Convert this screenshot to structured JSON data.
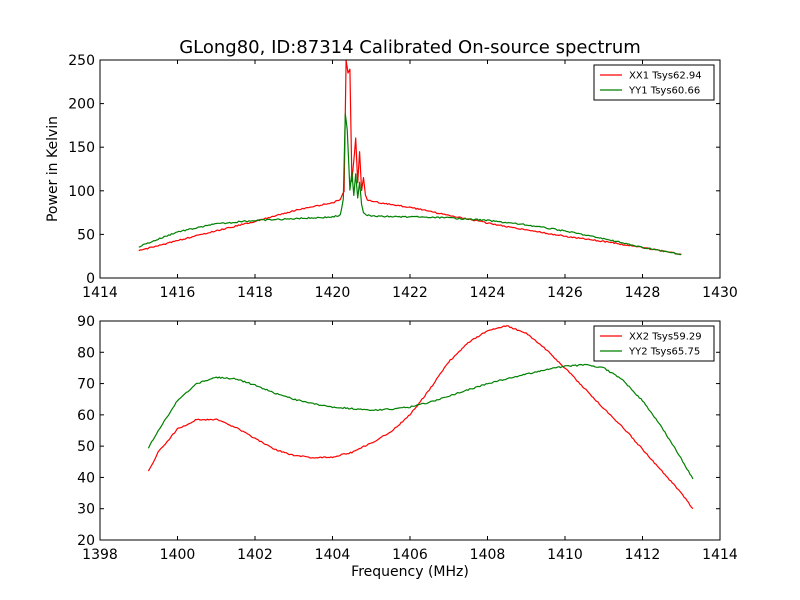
{
  "figure": {
    "title": "GLong80, ID:87314 Calibrated On-source spectrum",
    "shared_xlabel": "Frequency (MHz)"
  },
  "chart_data": [
    {
      "type": "line",
      "title": "GLong80, ID:87314 Calibrated On-source spectrum",
      "xlabel": "",
      "ylabel": "Power in Kelvin",
      "xlim": [
        1414,
        1430
      ],
      "ylim": [
        0,
        250
      ],
      "xticks": [
        1414,
        1416,
        1418,
        1420,
        1422,
        1424,
        1426,
        1428,
        1430
      ],
      "yticks": [
        0,
        50,
        100,
        150,
        200,
        250
      ],
      "legend_position": "top-right",
      "series": [
        {
          "name": "XX1 Tsys62.94",
          "color": "#ff0000",
          "x": [
            1415.0,
            1416.0,
            1417.0,
            1418.0,
            1419.0,
            1419.5,
            1420.0,
            1420.2,
            1420.3,
            1420.35,
            1420.4,
            1420.45,
            1420.5,
            1420.6,
            1420.65,
            1420.7,
            1420.75,
            1420.8,
            1420.85,
            1420.9,
            1421.0,
            1422.0,
            1423.0,
            1424.0,
            1425.0,
            1426.0,
            1427.0,
            1428.0,
            1429.0
          ],
          "y": [
            31,
            43,
            54,
            65,
            77,
            82,
            86,
            90,
            100,
            250,
            235,
            240,
            110,
            160,
            110,
            145,
            100,
            115,
            95,
            90,
            88,
            81,
            72,
            63,
            55,
            48,
            42,
            35,
            27
          ]
        },
        {
          "name": "YY1 Tsys60.66",
          "color": "#008000",
          "x": [
            1415.0,
            1416.0,
            1417.0,
            1418.0,
            1419.0,
            1420.0,
            1420.2,
            1420.28,
            1420.33,
            1420.38,
            1420.45,
            1420.5,
            1420.55,
            1420.6,
            1420.65,
            1420.7,
            1420.75,
            1420.8,
            1420.9,
            1421.0,
            1422.0,
            1423.0,
            1424.0,
            1425.0,
            1426.0,
            1427.0,
            1428.0,
            1429.0
          ],
          "y": [
            36,
            53,
            62,
            66,
            68,
            70,
            72,
            90,
            188,
            170,
            100,
            122,
            95,
            120,
            92,
            110,
            85,
            75,
            72,
            71,
            70,
            69,
            66,
            61,
            54,
            45,
            35,
            27
          ]
        }
      ]
    },
    {
      "type": "line",
      "title": "",
      "xlabel": "Frequency (MHz)",
      "ylabel": "",
      "xlim": [
        1398,
        1414
      ],
      "ylim": [
        20,
        90
      ],
      "xticks": [
        1398,
        1400,
        1402,
        1404,
        1406,
        1408,
        1410,
        1412,
        1414
      ],
      "yticks": [
        20,
        30,
        40,
        50,
        60,
        70,
        80,
        90
      ],
      "legend_position": "top-right",
      "series": [
        {
          "name": "XX2 Tsys59.29",
          "color": "#ff0000",
          "x": [
            1399.25,
            1399.5,
            1400.0,
            1400.5,
            1401.0,
            1401.5,
            1402.0,
            1402.5,
            1403.0,
            1403.5,
            1404.0,
            1404.5,
            1405.0,
            1405.5,
            1406.0,
            1406.5,
            1407.0,
            1407.5,
            1408.0,
            1408.5,
            1409.0,
            1409.5,
            1410.0,
            1410.5,
            1411.0,
            1411.5,
            1412.0,
            1412.5,
            1413.0,
            1413.3
          ],
          "y": [
            42,
            48,
            55.5,
            58.5,
            58.5,
            56,
            52.5,
            49,
            47,
            46.3,
            46.5,
            48,
            51,
            54.5,
            60,
            68,
            77,
            83,
            87,
            88.5,
            86,
            81,
            75,
            68.5,
            62,
            56,
            49,
            42,
            35,
            30
          ]
        },
        {
          "name": "YY2 Tsys65.75",
          "color": "#008000",
          "x": [
            1399.25,
            1399.5,
            1400.0,
            1400.5,
            1401.0,
            1401.5,
            1402.0,
            1402.5,
            1403.0,
            1403.5,
            1404.0,
            1404.5,
            1405.0,
            1405.5,
            1406.0,
            1406.5,
            1407.0,
            1407.5,
            1408.0,
            1408.5,
            1409.0,
            1409.5,
            1410.0,
            1410.5,
            1411.0,
            1411.5,
            1412.0,
            1412.5,
            1413.0,
            1413.3
          ],
          "y": [
            49.5,
            55,
            64.5,
            70,
            72,
            71.5,
            69.5,
            67,
            65,
            63.5,
            62.5,
            62,
            61.5,
            61.8,
            62.5,
            64,
            66,
            68,
            70,
            71.5,
            73,
            74.5,
            75.5,
            76,
            75,
            71,
            64.5,
            56,
            46,
            39.5
          ]
        }
      ]
    }
  ]
}
